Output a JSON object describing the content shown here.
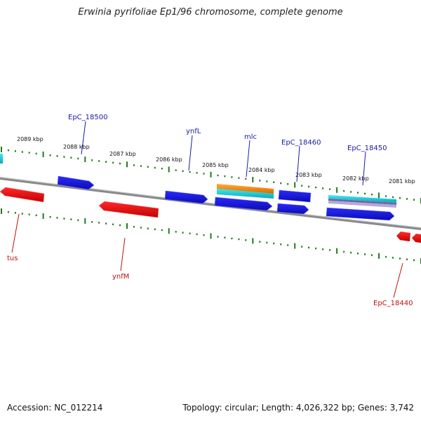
{
  "title": "Erwinia pyrifoliae Ep1/96 chromosome, complete genome",
  "footer": {
    "accession": "Accession: NC_012214",
    "summary": "Topology: circular; Length: 4,026,322 bp; Genes: 3,742"
  },
  "colors": {
    "backbone": "#8a8a8a",
    "ticks": "#1f7a1f",
    "forward": "#1515d6",
    "reverse": "#e01010",
    "cyan": "#12c8d8",
    "orange": "#f08a0a",
    "forward_label": "#1a1aa8",
    "reverse_label": "#c01010"
  },
  "scale_labels": [
    "2089 kbp",
    "2088 kbp",
    "2087 kbp",
    "2086 kbp",
    "2085 kbp",
    "2084 kbp",
    "2083 kbp",
    "2082 kbp",
    "2081 kbp"
  ],
  "forward_genes": [
    "EpC_18500",
    "ynfL",
    "mlc",
    "EpC_18460",
    "EpC_18450"
  ],
  "reverse_genes": [
    "tus",
    "ynfM",
    "EpC_18440"
  ]
}
